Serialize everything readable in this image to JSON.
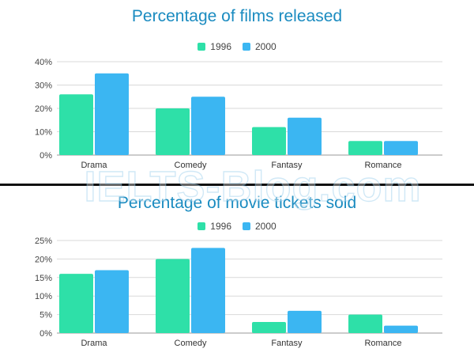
{
  "colors": {
    "s1996": "#2ee0a8",
    "s2000": "#3bb6f2",
    "title": "#1a8bc0",
    "grid": "#d9d9d9"
  },
  "watermark": "IELTS-Blog.com",
  "chart_data": [
    {
      "type": "bar",
      "title": "Percentage of films released",
      "categories": [
        "Drama",
        "Comedy",
        "Fantasy",
        "Romance"
      ],
      "series": [
        {
          "name": "1996",
          "values": [
            26,
            20,
            12,
            6
          ]
        },
        {
          "name": "2000",
          "values": [
            35,
            25,
            16,
            6
          ]
        }
      ],
      "ylim": [
        0,
        40
      ],
      "yticks": [
        "0%",
        "10%",
        "20%",
        "30%",
        "40%"
      ],
      "legend": "top-center",
      "grid": true
    },
    {
      "type": "bar",
      "title": "Percentage of movie tickets sold",
      "categories": [
        "Drama",
        "Comedy",
        "Fantasy",
        "Romance"
      ],
      "series": [
        {
          "name": "1996",
          "values": [
            16,
            20,
            3,
            5
          ]
        },
        {
          "name": "2000",
          "values": [
            17,
            23,
            6,
            2
          ]
        }
      ],
      "ylim": [
        0,
        25
      ],
      "yticks": [
        "0%",
        "5%",
        "10%",
        "15%",
        "20%",
        "25%"
      ],
      "legend": "top-center",
      "grid": true
    }
  ]
}
